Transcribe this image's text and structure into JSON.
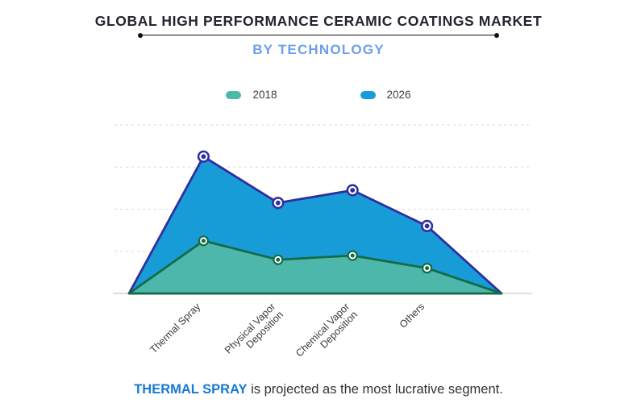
{
  "header": {
    "title": "GLOBAL HIGH PERFORMANCE CERAMIC COATINGS MARKET",
    "subtitle": "BY TECHNOLOGY"
  },
  "chart_data": {
    "type": "area",
    "title": "GLOBAL HIGH PERFORMANCE CERAMIC COATINGS MARKET",
    "subtitle": "BY TECHNOLOGY",
    "categories": [
      "Thermal Spray",
      "Physical Vapor\nDeposition",
      "Chemical Vapor\nDeposition",
      "Others"
    ],
    "series": [
      {
        "name": "2018",
        "values": [
          1.25,
          0.8,
          0.9,
          0.6
        ],
        "color": "#4db7ac",
        "line_color": "#156b45"
      },
      {
        "name": "2026",
        "values": [
          3.25,
          2.15,
          2.45,
          1.6
        ],
        "color": "#189cd8",
        "line_color": "#2e2f9f"
      }
    ],
    "xlabel": "",
    "ylabel": "",
    "ylim": [
      0,
      4
    ],
    "gridline_count": 4,
    "grid": true,
    "legend_position": "top",
    "endpoints_drop_to_zero": true
  },
  "caption": {
    "highlight": "THERMAL SPRAY",
    "rest": " is projected as the most lucrative segment."
  },
  "colors": {
    "title": "#23252e",
    "subtitle": "#6d9eeb",
    "grid": "#d9d9d9",
    "axis": "#c9c9c9",
    "caption_highlight": "#1779d1",
    "caption_text": "#333333"
  }
}
